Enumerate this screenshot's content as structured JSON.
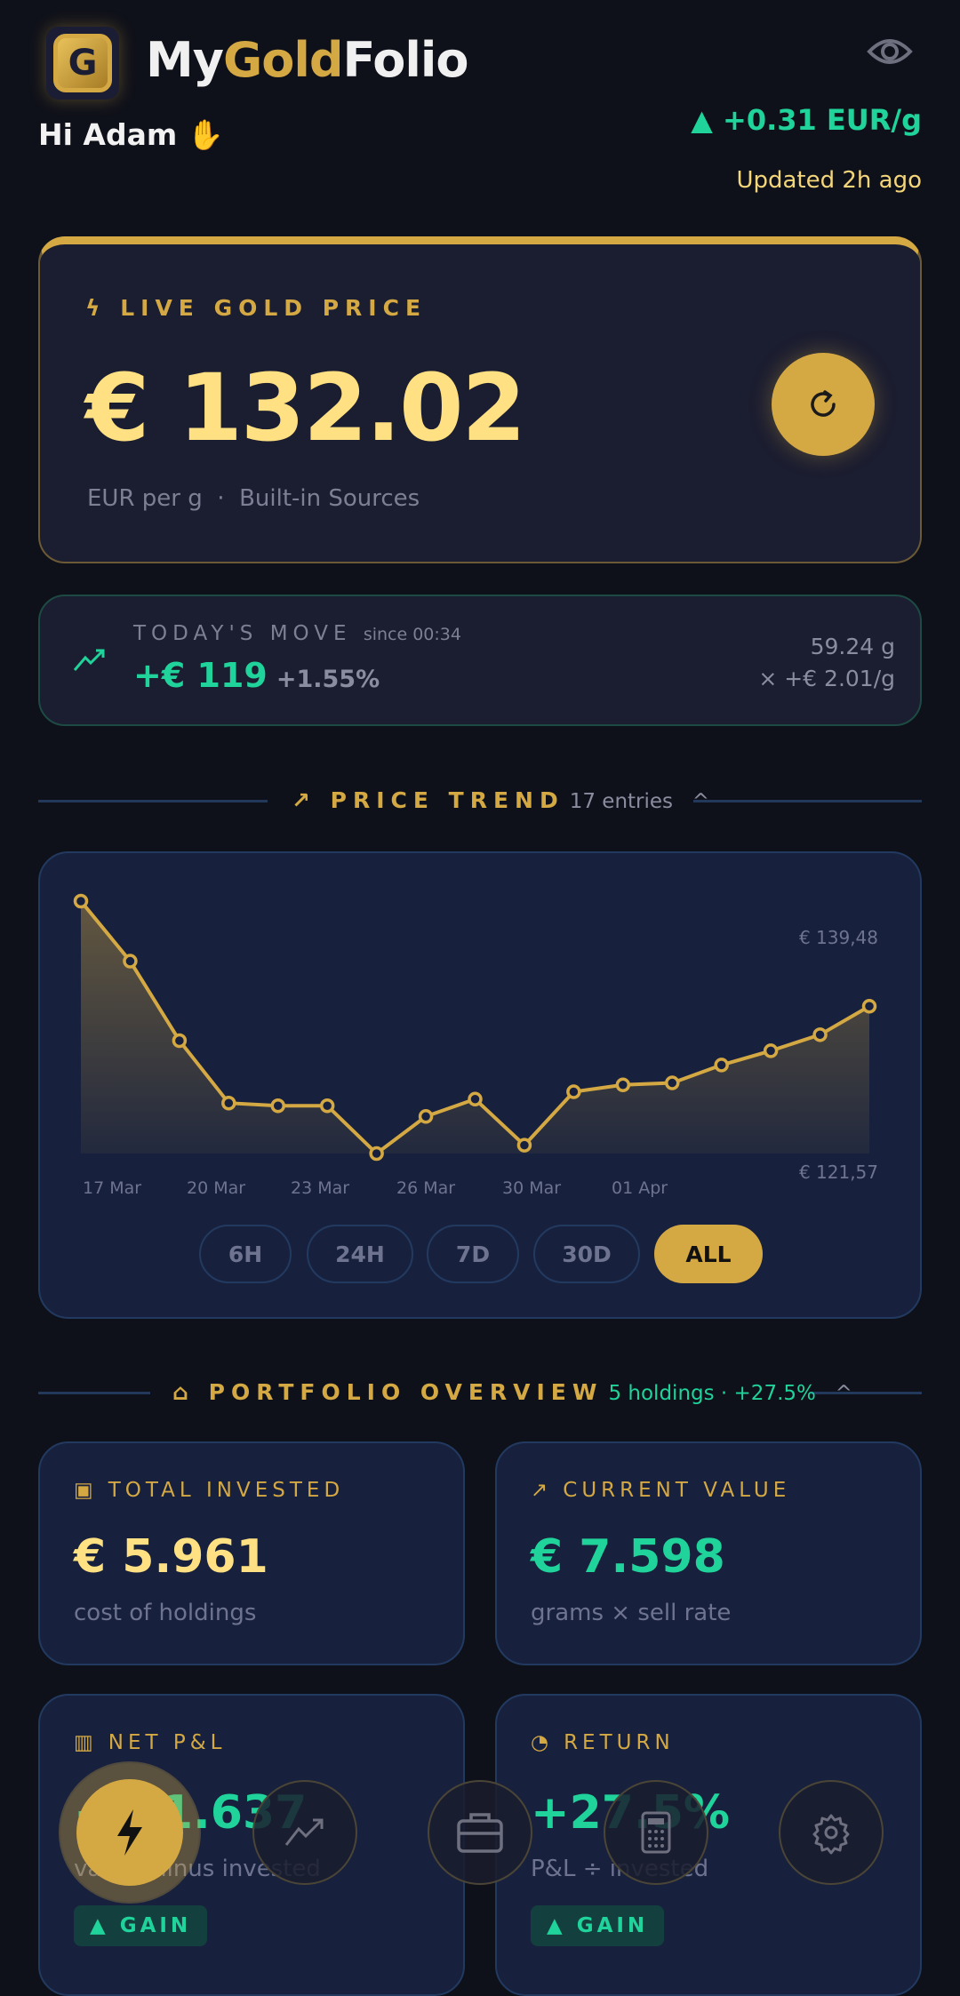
{
  "header": {
    "title_a": "My",
    "title_b": "Gold",
    "title_c": "Folio",
    "greeting": "Hi Adam",
    "delta": "▲ +0.31 EUR/g",
    "updated": "Updated 2h ago"
  },
  "live": {
    "label": "LIVE GOLD PRICE",
    "price": "€ 132.02",
    "unit": "EUR per g",
    "dot": "·",
    "source": "Built-in Sources"
  },
  "move": {
    "label": "TODAY'S MOVE",
    "since": "since 00:34",
    "value": "+€ 119",
    "pct": "+1.55%",
    "grams": "59.24 g",
    "rate": "× +€ 2.01/g"
  },
  "trend": {
    "title": "PRICE TREND",
    "entries": "17 entries",
    "ranges": [
      "6H",
      "24H",
      "7D",
      "30D",
      "ALL"
    ],
    "active_range": "ALL"
  },
  "chart_data": {
    "type": "area",
    "values": [
      139.48,
      135.22,
      129.58,
      125.15,
      124.96,
      124.96,
      121.57,
      124.2,
      125.43,
      122.16,
      125.95,
      126.44,
      126.58,
      127.85,
      128.86,
      130.0,
      132.02
    ],
    "x_tick_labels": [
      "17 Mar",
      "20 Mar",
      "23 Mar",
      "26 Mar",
      "30 Mar",
      "01 Apr"
    ],
    "max_label": "€ 139,48",
    "min_label": "€ 121,57",
    "ylim": [
      121.57,
      139.48
    ],
    "color": "#d4a843",
    "grid": false
  },
  "portfolio": {
    "title": "PORTFOLIO OVERVIEW",
    "summary": "5 holdings · +27.5%",
    "cards": [
      {
        "label": "TOTAL INVESTED",
        "value": "€ 5.961",
        "sub": "cost of holdings"
      },
      {
        "label": "CURRENT VALUE",
        "value": "€ 7.598",
        "sub": "grams × sell rate"
      },
      {
        "label": "NET P&L",
        "value": "+€ 1.637",
        "sub": "value minus invested",
        "badge": "▲ GAIN"
      },
      {
        "label": "RETURN",
        "value": "+27.5%",
        "sub": "P&L ÷ invested",
        "badge": "▲ GAIN"
      }
    ]
  },
  "colors": {
    "gold": "#d4a843",
    "green": "#1fd39a",
    "bg": "#0f111a",
    "card": "#17213d"
  }
}
